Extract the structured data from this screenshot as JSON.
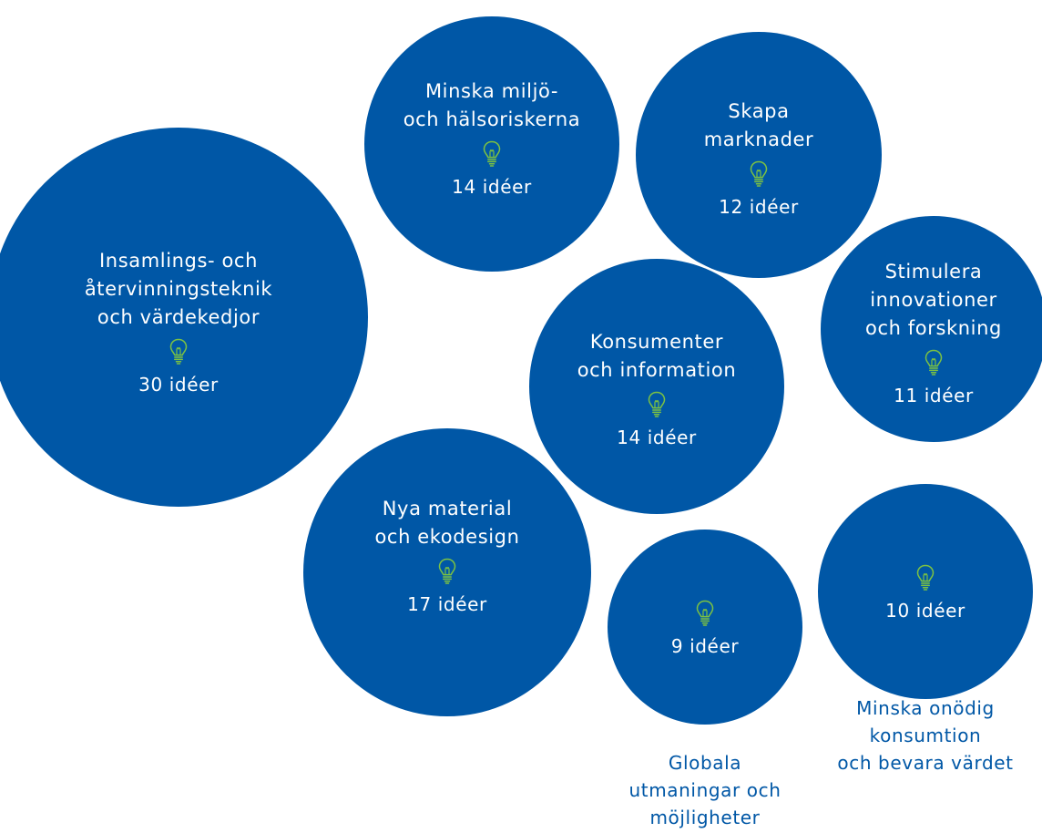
{
  "colors": {
    "bubble": "#0057A6",
    "text_inside": "#FFFFFF",
    "icon": "#7CC242",
    "outside_label": "#0057A6"
  },
  "icon": "lightbulb-icon",
  "bubbles": {
    "insamling": {
      "title": [
        "Insamlings- och",
        "återvinningsteknik",
        "och värdekedjor"
      ],
      "count": "30 idéer"
    },
    "miljo": {
      "title": [
        "Minska miljö-",
        "och hälsoriskerna"
      ],
      "count": "14 idéer"
    },
    "marknader": {
      "title": [
        "Skapa",
        "marknader"
      ],
      "count": "12 idéer"
    },
    "konsumenter": {
      "title": [
        "Konsumenter",
        "och information"
      ],
      "count": "14 idéer"
    },
    "stimulera": {
      "title": [
        "Stimulera",
        "innovationer",
        "och forskning"
      ],
      "count": "11 idéer"
    },
    "material": {
      "title": [
        "Nya material",
        "och ekodesign"
      ],
      "count": "17 idéer"
    },
    "globala": {
      "count": "9 idéer",
      "label": [
        "Globala",
        "utmaningar och",
        "möjligheter"
      ]
    },
    "onodig": {
      "count": "10 idéer",
      "label": [
        "Minska onödig",
        "konsumtion",
        "och bevara värdet"
      ]
    }
  }
}
